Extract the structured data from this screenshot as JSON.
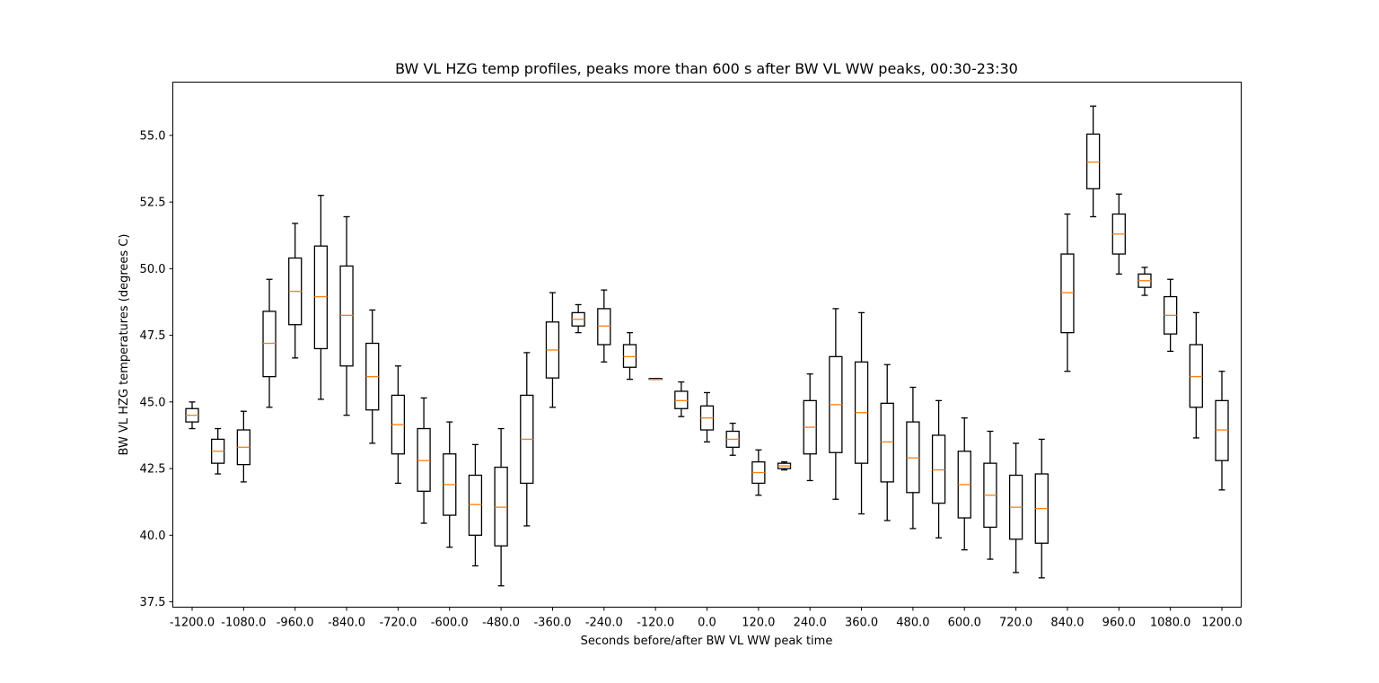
{
  "chart_data": {
    "type": "boxplot",
    "title": "BW VL HZG temp profiles, peaks more than 600 s after BW VL WW peaks, 00:30-23:30",
    "xlabel": "Seconds before/after BW VL WW peak time",
    "ylabel": "BW VL HZG temperatures (degrees C)",
    "ylim": [
      37.3,
      57.0
    ],
    "yticks": [
      37.5,
      40.0,
      42.5,
      45.0,
      47.5,
      50.0,
      52.5,
      55.0
    ],
    "ytick_labels": [
      "37.5",
      "40.0",
      "42.5",
      "45.0",
      "47.5",
      "50.0",
      "52.5",
      "55.0"
    ],
    "xtick_labels": [
      "-1200.0",
      "-1080.0",
      "-960.0",
      "-840.0",
      "-720.0",
      "-600.0",
      "-480.0",
      "-360.0",
      "-240.0",
      "-120.0",
      "0.0",
      "120.0",
      "240.0",
      "360.0",
      "480.0",
      "600.0",
      "720.0",
      "840.0",
      "960.0",
      "1080.0",
      "1200.0"
    ],
    "grid": false,
    "colors": {
      "box": "#000000",
      "median": "#ff7f0e"
    },
    "boxes": [
      {
        "x": -1200,
        "whislo": 44.0,
        "q1": 44.25,
        "med": 44.5,
        "q3": 44.75,
        "whishi": 45.0
      },
      {
        "x": -1140,
        "whislo": 42.3,
        "q1": 42.7,
        "med": 43.15,
        "q3": 43.6,
        "whishi": 44.0
      },
      {
        "x": -1080,
        "whislo": 42.0,
        "q1": 42.65,
        "med": 43.3,
        "q3": 43.95,
        "whishi": 44.65
      },
      {
        "x": -1020,
        "whislo": 44.8,
        "q1": 45.95,
        "med": 47.2,
        "q3": 48.4,
        "whishi": 49.6
      },
      {
        "x": -960,
        "whislo": 46.65,
        "q1": 47.9,
        "med": 49.15,
        "q3": 50.4,
        "whishi": 51.7
      },
      {
        "x": -900,
        "whislo": 45.1,
        "q1": 47.0,
        "med": 48.95,
        "q3": 50.85,
        "whishi": 52.75
      },
      {
        "x": -840,
        "whislo": 44.5,
        "q1": 46.35,
        "med": 48.25,
        "q3": 50.1,
        "whishi": 51.95
      },
      {
        "x": -780,
        "whislo": 43.45,
        "q1": 44.7,
        "med": 45.95,
        "q3": 47.2,
        "whishi": 48.45
      },
      {
        "x": -720,
        "whislo": 41.95,
        "q1": 43.05,
        "med": 44.15,
        "q3": 45.25,
        "whishi": 46.35
      },
      {
        "x": -660,
        "whislo": 40.45,
        "q1": 41.65,
        "med": 42.8,
        "q3": 44.0,
        "whishi": 45.15
      },
      {
        "x": -600,
        "whislo": 39.55,
        "q1": 40.75,
        "med": 41.9,
        "q3": 43.05,
        "whishi": 44.25
      },
      {
        "x": -540,
        "whislo": 38.85,
        "q1": 40.0,
        "med": 41.15,
        "q3": 42.25,
        "whishi": 43.4
      },
      {
        "x": -480,
        "whislo": 38.1,
        "q1": 39.6,
        "med": 41.05,
        "q3": 42.55,
        "whishi": 44.0
      },
      {
        "x": -420,
        "whislo": 40.35,
        "q1": 41.95,
        "med": 43.6,
        "q3": 45.25,
        "whishi": 46.85
      },
      {
        "x": -360,
        "whislo": 44.8,
        "q1": 45.9,
        "med": 46.95,
        "q3": 48.0,
        "whishi": 49.1
      },
      {
        "x": -300,
        "whislo": 47.6,
        "q1": 47.85,
        "med": 48.1,
        "q3": 48.35,
        "whishi": 48.65
      },
      {
        "x": -240,
        "whislo": 46.5,
        "q1": 47.15,
        "med": 47.85,
        "q3": 48.5,
        "whishi": 49.2
      },
      {
        "x": -180,
        "whislo": 45.85,
        "q1": 46.3,
        "med": 46.7,
        "q3": 47.15,
        "whishi": 47.6
      },
      {
        "x": -120,
        "whislo": 45.85,
        "q1": 45.85,
        "med": 45.85,
        "q3": 45.88,
        "whishi": 45.88
      },
      {
        "x": -60,
        "whislo": 44.45,
        "q1": 44.75,
        "med": 45.05,
        "q3": 45.4,
        "whishi": 45.75
      },
      {
        "x": 0,
        "whislo": 43.5,
        "q1": 43.95,
        "med": 44.4,
        "q3": 44.85,
        "whishi": 45.35
      },
      {
        "x": 60,
        "whislo": 43.0,
        "q1": 43.3,
        "med": 43.6,
        "q3": 43.9,
        "whishi": 44.2
      },
      {
        "x": 120,
        "whislo": 41.5,
        "q1": 41.95,
        "med": 42.35,
        "q3": 42.75,
        "whishi": 43.2
      },
      {
        "x": 180,
        "whislo": 42.45,
        "q1": 42.5,
        "med": 42.6,
        "q3": 42.7,
        "whishi": 42.75
      },
      {
        "x": 240,
        "whislo": 42.05,
        "q1": 43.05,
        "med": 44.05,
        "q3": 45.05,
        "whishi": 46.05
      },
      {
        "x": 300,
        "whislo": 41.35,
        "q1": 43.1,
        "med": 44.9,
        "q3": 46.7,
        "whishi": 48.5
      },
      {
        "x": 360,
        "whislo": 40.8,
        "q1": 42.7,
        "med": 44.6,
        "q3": 46.5,
        "whishi": 48.35
      },
      {
        "x": 420,
        "whislo": 40.55,
        "q1": 42.0,
        "med": 43.5,
        "q3": 44.95,
        "whishi": 46.4
      },
      {
        "x": 480,
        "whislo": 40.25,
        "q1": 41.6,
        "med": 42.9,
        "q3": 44.25,
        "whishi": 45.55
      },
      {
        "x": 540,
        "whislo": 39.9,
        "q1": 41.2,
        "med": 42.45,
        "q3": 43.75,
        "whishi": 45.05
      },
      {
        "x": 600,
        "whislo": 39.45,
        "q1": 40.65,
        "med": 41.9,
        "q3": 43.15,
        "whishi": 44.4
      },
      {
        "x": 660,
        "whislo": 39.1,
        "q1": 40.3,
        "med": 41.5,
        "q3": 42.7,
        "whishi": 43.9
      },
      {
        "x": 720,
        "whislo": 38.6,
        "q1": 39.85,
        "med": 41.05,
        "q3": 42.25,
        "whishi": 43.45
      },
      {
        "x": 780,
        "whislo": 38.4,
        "q1": 39.7,
        "med": 41.0,
        "q3": 42.3,
        "whishi": 43.6
      },
      {
        "x": 840,
        "whislo": 46.15,
        "q1": 47.6,
        "med": 49.1,
        "q3": 50.55,
        "whishi": 52.05
      },
      {
        "x": 900,
        "whislo": 51.95,
        "q1": 53.0,
        "med": 54.0,
        "q3": 55.05,
        "whishi": 56.1
      },
      {
        "x": 960,
        "whislo": 49.8,
        "q1": 50.55,
        "med": 51.3,
        "q3": 52.05,
        "whishi": 52.8
      },
      {
        "x": 1020,
        "whislo": 49.0,
        "q1": 49.3,
        "med": 49.55,
        "q3": 49.8,
        "whishi": 50.05
      },
      {
        "x": 1080,
        "whislo": 46.9,
        "q1": 47.55,
        "med": 48.25,
        "q3": 48.95,
        "whishi": 49.6
      },
      {
        "x": 1140,
        "whislo": 43.65,
        "q1": 44.8,
        "med": 45.95,
        "q3": 47.15,
        "whishi": 48.35
      },
      {
        "x": 1200,
        "whislo": 41.7,
        "q1": 42.8,
        "med": 43.95,
        "q3": 45.05,
        "whishi": 46.15
      }
    ]
  }
}
